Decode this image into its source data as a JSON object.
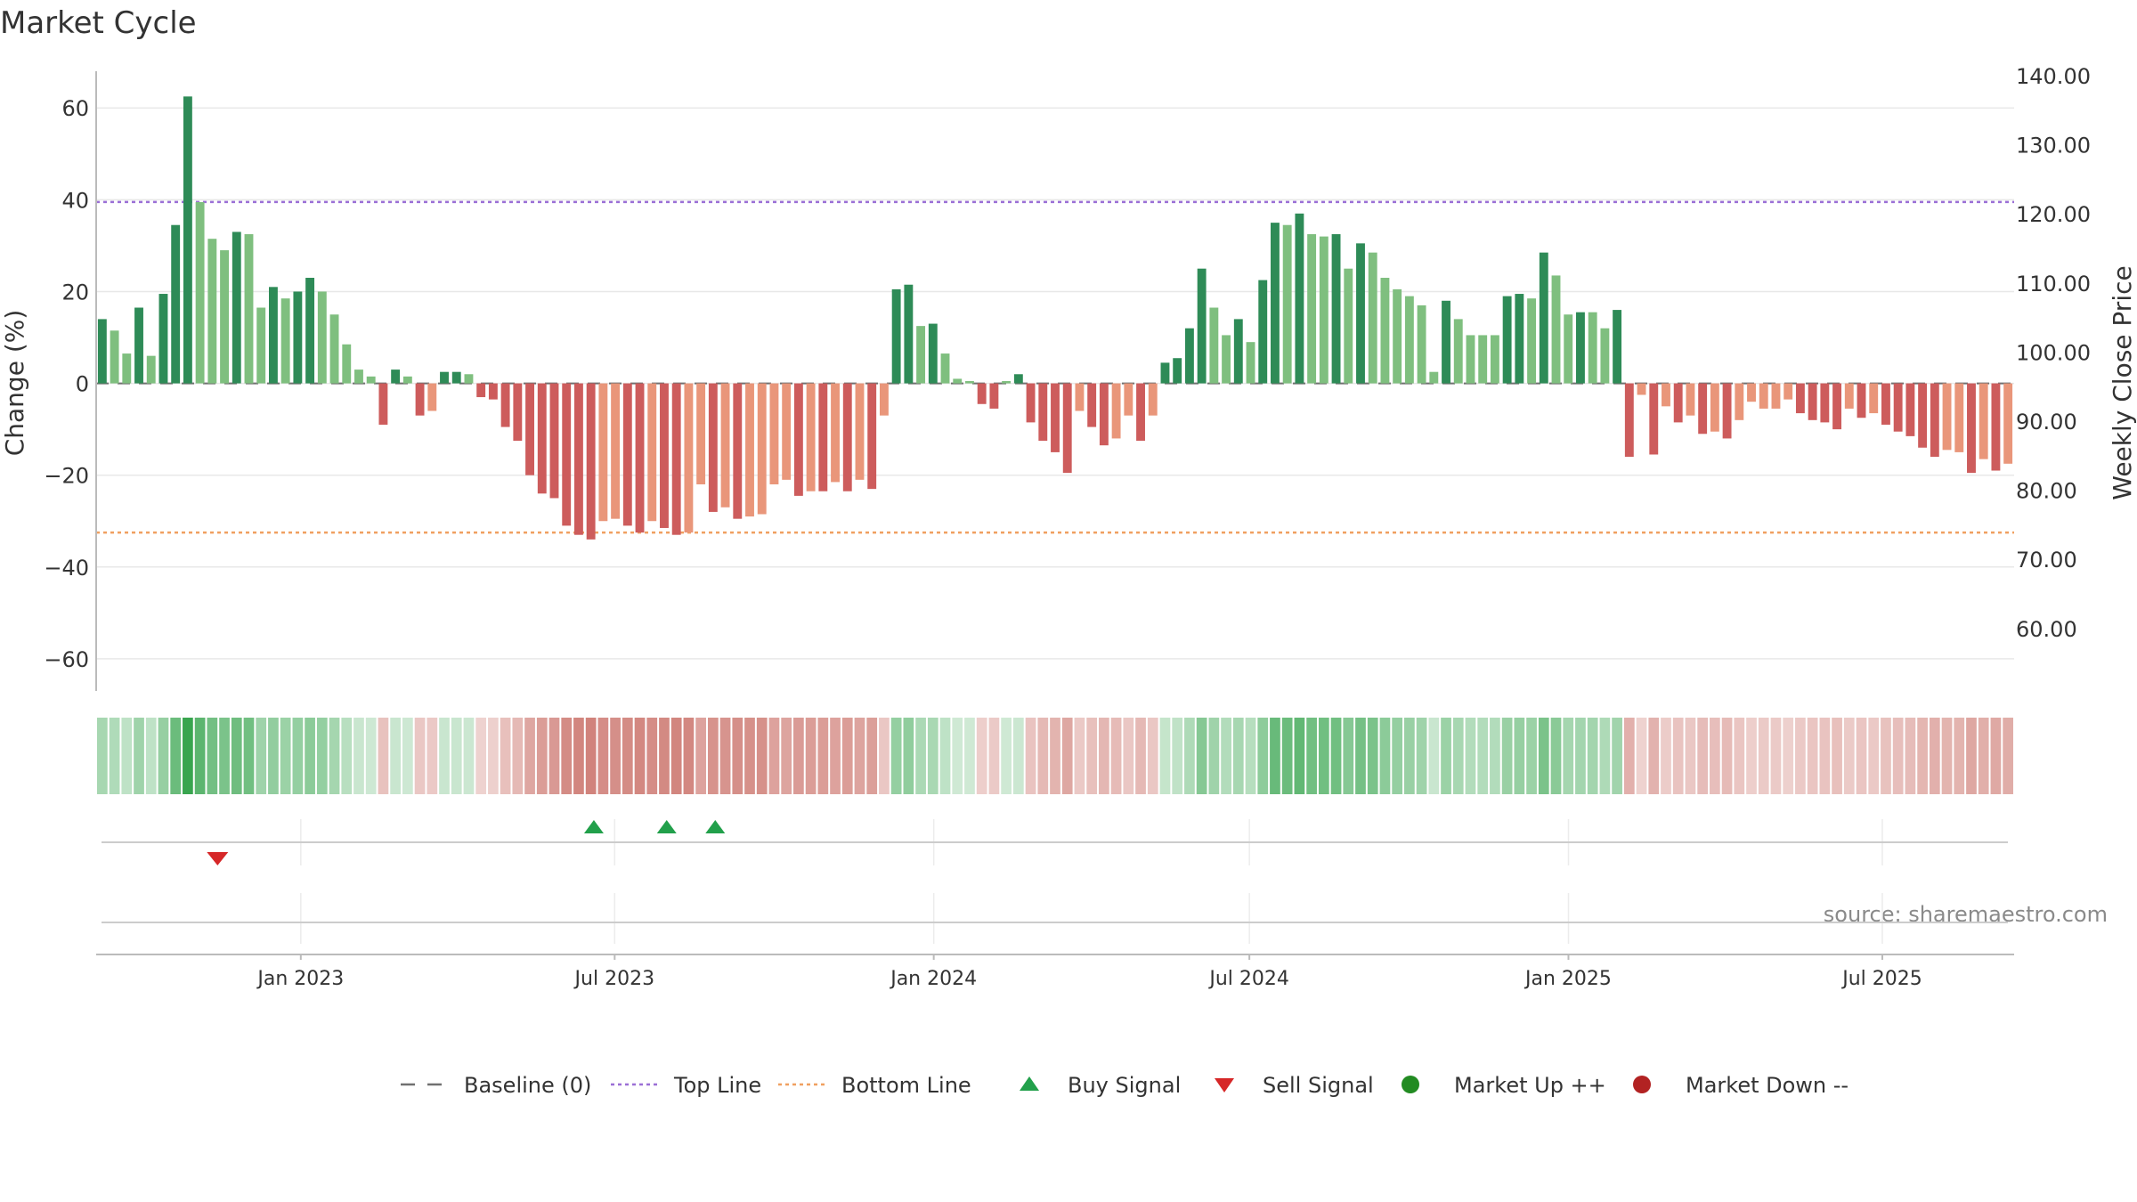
{
  "chart_data": {
    "type": "bar",
    "title": "Market Cycle",
    "source_note": "source: sharemaestro.com",
    "y_left": {
      "label": "Change (%)",
      "range": [
        -67,
        68
      ],
      "ticks": [
        60,
        40,
        20,
        0,
        -20,
        -40,
        -60
      ],
      "tick_labels": [
        "60",
        "40",
        "20",
        "0",
        "−20",
        "−40",
        "−60"
      ]
    },
    "y_right": {
      "label": "Weekly Close Price",
      "ticks": [
        140,
        130,
        120,
        110,
        100,
        90,
        80,
        70,
        60
      ],
      "tick_labels": [
        "140.00",
        "130.00",
        "120.00",
        "110.00",
        "100.00",
        "90.00",
        "80.00",
        "70.00",
        "60.00"
      ]
    },
    "x_axis": {
      "start": "2022-09-05",
      "end": "2025-09-15",
      "tick_dates": [
        "2023-01-01",
        "2023-07-01",
        "2024-01-01",
        "2024-07-01",
        "2025-01-01",
        "2025-07-01"
      ],
      "tick_labels": [
        "Jan 2023",
        "Jul 2023",
        "Jan 2024",
        "Jul 2024",
        "Jan 2025",
        "Jul 2025"
      ]
    },
    "reference_lines": {
      "baseline": 0,
      "top_line": 39.5,
      "bottom_line": -32.5
    },
    "colors": {
      "up_strong": "#2e8b57",
      "up_weak": "#7fbf7f",
      "down_strong": "#cd5c5c",
      "down_weak": "#e9967a",
      "top_line": "#9b6fd6",
      "bottom_line": "#f0a060",
      "buy": "#22a04b",
      "sell": "#d62728",
      "market_up": "#228b22",
      "market_down": "#b22222"
    },
    "series": [
      {
        "name": "Change (%)",
        "start_date": "2022-09-05",
        "interval_days": 7,
        "values": [
          14,
          11.5,
          6.5,
          16.5,
          6,
          19.5,
          34.5,
          62.5,
          39.5,
          31.5,
          29,
          33,
          32.5,
          16.5,
          21,
          18.5,
          20,
          23,
          20,
          15,
          8.5,
          3,
          1.5,
          -9,
          3,
          1.5,
          -7,
          -6,
          2.5,
          2.5,
          2,
          -3,
          -3.5,
          -9.5,
          -12.5,
          -20,
          -24,
          -25,
          -31,
          -33,
          -34,
          -30,
          -29.5,
          -31,
          -32.5,
          -30,
          -31.5,
          -33,
          -32.5,
          -22,
          -28,
          -27,
          -29.5,
          -29,
          -28.5,
          -22,
          -21,
          -24.5,
          -23.5,
          -23.5,
          -21.5,
          -23.5,
          -21,
          -23,
          -7,
          20.5,
          21.5,
          12.5,
          13,
          6.5,
          1,
          0.5,
          -4.5,
          -5.5,
          0.5,
          2,
          -8.5,
          -12.5,
          -15,
          -19.5,
          -6,
          -9.5,
          -13.5,
          -12,
          -7,
          -12.5,
          -7,
          4.5,
          5.5,
          12,
          25,
          16.5,
          10.5,
          14,
          9,
          22.5,
          35,
          34.5,
          37,
          32.5,
          32,
          32.5,
          25,
          30.5,
          28.5,
          23,
          20.5,
          19,
          17,
          2.5,
          18,
          14,
          10.5,
          10.5,
          10.5,
          19,
          19.5,
          18.5,
          28.5,
          23.5,
          15,
          15.5,
          15.5,
          12,
          16,
          -16,
          -2.5,
          -15.5,
          -5,
          -8.5,
          -7,
          -11,
          -10.5,
          -12,
          -8,
          -4,
          -5.5,
          -5.5,
          -3.5,
          -6.5,
          -8,
          -8.5,
          -10,
          -5.5,
          -7.5,
          -6.5,
          -9,
          -10.5,
          -11.5,
          -14,
          -16,
          -14.5,
          -15,
          -19.5,
          -16.5,
          -19,
          -17.5
        ]
      }
    ],
    "bar_shades": [
      1,
      0,
      0,
      1,
      0,
      1,
      1,
      1,
      0,
      0,
      0,
      1,
      0,
      0,
      1,
      0,
      1,
      1,
      0,
      0,
      0,
      0,
      0,
      1,
      1,
      0,
      1,
      0,
      1,
      1,
      0,
      1,
      1,
      1,
      1,
      1,
      1,
      1,
      1,
      1,
      1,
      0,
      0,
      1,
      1,
      0,
      1,
      1,
      0,
      0,
      1,
      0,
      1,
      0,
      0,
      0,
      0,
      1,
      0,
      1,
      0,
      1,
      0,
      1,
      0,
      1,
      1,
      0,
      1,
      0,
      0,
      0,
      1,
      1,
      0,
      1,
      1,
      1,
      1,
      1,
      0,
      1,
      1,
      0,
      0,
      1,
      0,
      1,
      1,
      1,
      1,
      0,
      0,
      1,
      0,
      1,
      1,
      0,
      1,
      0,
      0,
      1,
      0,
      1,
      0,
      0,
      0,
      0,
      0,
      0,
      1,
      0,
      0,
      0,
      0,
      1,
      1,
      0,
      1,
      0,
      0,
      1,
      0,
      0,
      1,
      1,
      0,
      1,
      0,
      1,
      0,
      1,
      0,
      1,
      0,
      0,
      0,
      0,
      0,
      1,
      1,
      1,
      1,
      0,
      1,
      0,
      1,
      1,
      1,
      1,
      1,
      0,
      0,
      1,
      0,
      1,
      0
    ],
    "buy_signals": [
      "2023-06-19",
      "2023-07-31",
      "2023-08-28"
    ],
    "sell_signals": [
      "2022-11-14"
    ],
    "legend": {
      "position": "bottom",
      "items": [
        {
          "label": "Baseline (0)",
          "symbol": "dash",
          "color": "#707070"
        },
        {
          "label": "Top Line",
          "symbol": "dotted",
          "color": "#9b6fd6"
        },
        {
          "label": "Bottom Line",
          "symbol": "dotted",
          "color": "#f0a060"
        },
        {
          "label": "Buy Signal",
          "symbol": "triangle-up",
          "color": "#22a04b"
        },
        {
          "label": "Sell Signal",
          "symbol": "triangle-down",
          "color": "#d62728"
        },
        {
          "label": "Market Up ++",
          "symbol": "circle",
          "color": "#228b22"
        },
        {
          "label": "Market Down --",
          "symbol": "circle",
          "color": "#b22222"
        }
      ]
    }
  }
}
